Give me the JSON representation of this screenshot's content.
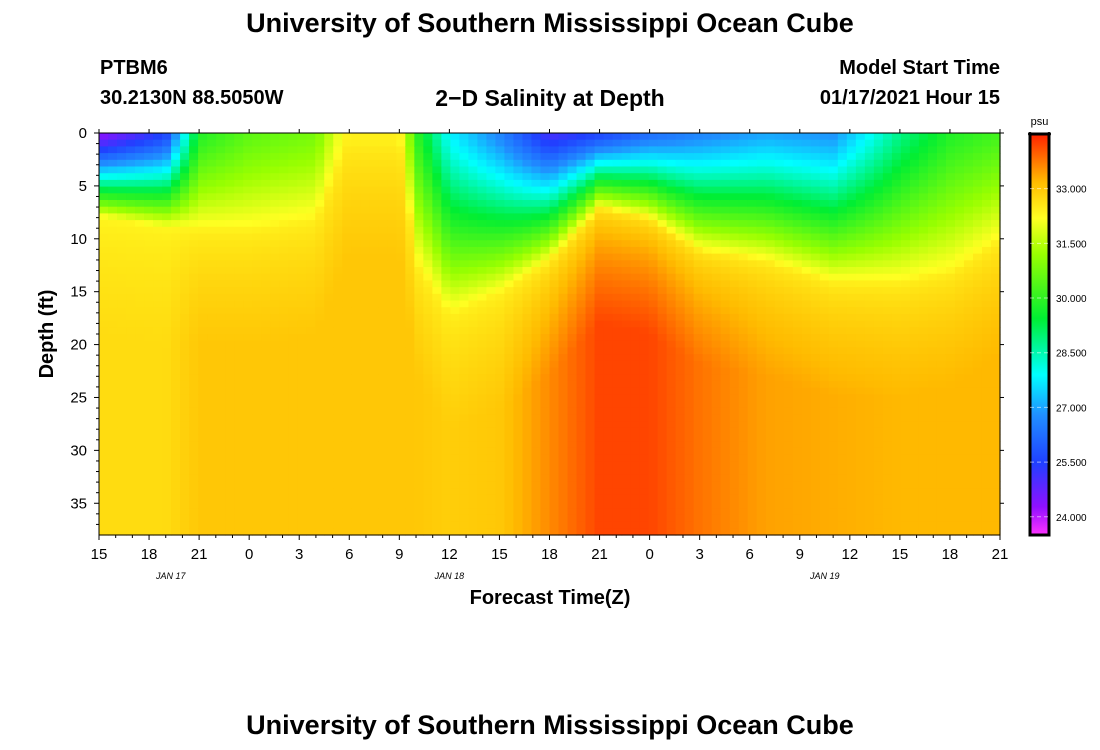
{
  "page": {
    "title_top": "University of Southern Mississippi Ocean Cube",
    "title_bottom": "University of Southern Mississippi Ocean Cube",
    "station": "PTBM6",
    "coords": "30.2130N 88.5050W",
    "plot_title": "2−D Salinity at Depth",
    "model_start_label": "Model Start Time",
    "model_start_value": "01/17/2021 Hour 15"
  },
  "chart_data": {
    "type": "heatmap",
    "title": "2−D Salinity at Depth",
    "xlabel": "Forecast Time(Z)",
    "ylabel": "Depth (ft)",
    "x_tick_labels": [
      "15",
      "18",
      "21",
      "0",
      "3",
      "6",
      "9",
      "12",
      "15",
      "18",
      "21",
      "0",
      "3",
      "6",
      "9",
      "12",
      "15",
      "18",
      "21"
    ],
    "x_hours_from_start": [
      0,
      3,
      6,
      9,
      12,
      15,
      18,
      21,
      24,
      27,
      30,
      33,
      36,
      39,
      42,
      45,
      48,
      51,
      54
    ],
    "date_labels": [
      {
        "label": "JAN 17",
        "hour": 4.3
      },
      {
        "label": "JAN 18",
        "hour": 21
      },
      {
        "label": "JAN 19",
        "hour": 43.5
      }
    ],
    "y_ticks": [
      0,
      5,
      10,
      15,
      20,
      25,
      30,
      35
    ],
    "ylim": [
      0,
      38
    ],
    "xlim": [
      0,
      54
    ],
    "colorbar": {
      "unit": "psu",
      "ticks": [
        "33.000",
        "31.500",
        "30.000",
        "28.500",
        "27.000",
        "25.500",
        "24.000"
      ],
      "tick_values": [
        33.0,
        31.5,
        30.0,
        28.5,
        27.0,
        25.5,
        24.0
      ],
      "vmin": 23.5,
      "vmax": 34.5
    },
    "salinity_profile": [
      {
        "hour": 0,
        "halocline_ft": 8,
        "surface_psu": 24.2,
        "deep_psu": 32.7
      },
      {
        "hour": 4,
        "halocline_ft": 9,
        "surface_psu": 25.5,
        "deep_psu": 32.7
      },
      {
        "hour": 6,
        "halocline_ft": 9,
        "surface_psu": 29.8,
        "deep_psu": 33.0
      },
      {
        "hour": 9,
        "halocline_ft": 9,
        "surface_psu": 30.5,
        "deep_psu": 33.0
      },
      {
        "hour": 13,
        "halocline_ft": 8,
        "surface_psu": 30.8,
        "deep_psu": 33.0
      },
      {
        "hour": 15,
        "halocline_ft": 0,
        "surface_psu": 32.6,
        "deep_psu": 33.0
      },
      {
        "hour": 18,
        "halocline_ft": 0,
        "surface_psu": 32.6,
        "deep_psu": 33.0
      },
      {
        "hour": 19,
        "halocline_ft": 12,
        "surface_psu": 30.0,
        "deep_psu": 33.0
      },
      {
        "hour": 21,
        "halocline_ft": 17,
        "surface_psu": 27.8,
        "deep_psu": 32.9
      },
      {
        "hour": 24,
        "halocline_ft": 15,
        "surface_psu": 26.6,
        "deep_psu": 33.0
      },
      {
        "hour": 27,
        "halocline_ft": 12,
        "surface_psu": 25.0,
        "deep_psu": 33.6
      },
      {
        "hour": 30,
        "halocline_ft": 7,
        "surface_psu": 25.5,
        "deep_psu": 34.2
      },
      {
        "hour": 33,
        "halocline_ft": 8,
        "surface_psu": 26.2,
        "deep_psu": 34.2
      },
      {
        "hour": 36,
        "halocline_ft": 11,
        "surface_psu": 26.6,
        "deep_psu": 33.8
      },
      {
        "hour": 40,
        "halocline_ft": 12,
        "surface_psu": 27.0,
        "deep_psu": 33.4
      },
      {
        "hour": 44,
        "halocline_ft": 14,
        "surface_psu": 26.8,
        "deep_psu": 33.3
      },
      {
        "hour": 48,
        "halocline_ft": 14,
        "surface_psu": 28.8,
        "deep_psu": 33.2
      },
      {
        "hour": 51,
        "halocline_ft": 13,
        "surface_psu": 29.8,
        "deep_psu": 33.2
      },
      {
        "hour": 54,
        "halocline_ft": 10,
        "surface_psu": 30.2,
        "deep_psu": 33.2
      }
    ]
  }
}
